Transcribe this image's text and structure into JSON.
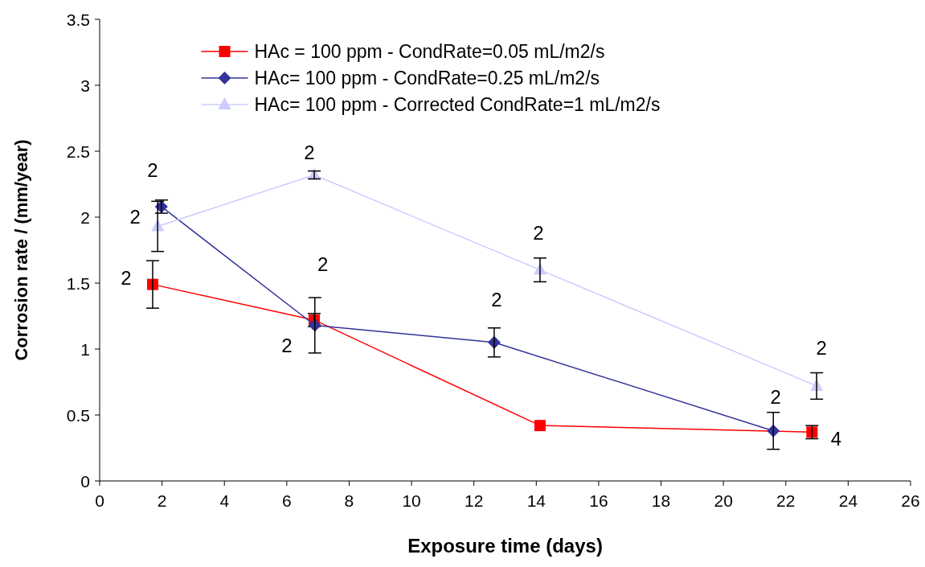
{
  "chart_data": {
    "type": "line",
    "xlabel": "Exposure time (days)",
    "ylabel": "Corrosion rate / (mm/year)",
    "xlim": [
      0,
      26
    ],
    "xticks": [
      0,
      2,
      4,
      6,
      8,
      10,
      12,
      14,
      16,
      18,
      20,
      22,
      24,
      26
    ],
    "ylim": [
      0,
      3.5
    ],
    "yticks": [
      0,
      0.5,
      1,
      1.5,
      2,
      2.5,
      3,
      3.5
    ],
    "grid": false,
    "legend": "top",
    "series": [
      {
        "name": "HAc = 100 ppm - CondRate=0.05 mL/m2/s",
        "color": "#ff0000",
        "marker": "square",
        "x": [
          1.7,
          6.88,
          14.12,
          22.84
        ],
        "values": [
          1.49,
          1.22,
          0.42,
          0.37
        ],
        "errors": [
          0.18,
          0.05,
          null,
          0.05
        ]
      },
      {
        "name": "HAc= 100 ppm - CondRate=0.25 mL/m2/s",
        "color": "#333399",
        "marker": "diamond",
        "x": [
          1.98,
          6.9,
          12.65,
          21.6
        ],
        "values": [
          2.08,
          1.18,
          1.05,
          0.38
        ],
        "errors": [
          0.05,
          0.21,
          0.11,
          0.14
        ]
      },
      {
        "name": "HAc= 100 ppm - Corrected CondRate=1 mL/m2/s",
        "color": "#ccccff",
        "marker": "triangle",
        "x": [
          1.86,
          6.88,
          14.12,
          22.99
        ],
        "values": [
          1.93,
          2.32,
          1.6,
          0.72
        ],
        "errors": [
          0.19,
          0.03,
          0.09,
          0.1
        ]
      }
    ],
    "annotations": [
      {
        "text": "2",
        "x": 1.98,
        "y": 2.08
      },
      {
        "text": "2",
        "x": 1.86,
        "y": 1.93
      },
      {
        "text": "2",
        "x": 1.7,
        "y": 1.49
      },
      {
        "text": "2",
        "x": 6.88,
        "y": 2.32
      },
      {
        "text": "2",
        "x": 6.9,
        "y": 1.18
      },
      {
        "text": "2",
        "x": 6.88,
        "y": 1.22
      },
      {
        "text": "2",
        "x": 12.65,
        "y": 1.05
      },
      {
        "text": "2",
        "x": 14.12,
        "y": 1.6
      },
      {
        "text": "2",
        "x": 21.6,
        "y": 0.38
      },
      {
        "text": "2",
        "x": 22.99,
        "y": 0.72
      },
      {
        "text": "4",
        "x": 22.84,
        "y": 0.37
      }
    ]
  }
}
